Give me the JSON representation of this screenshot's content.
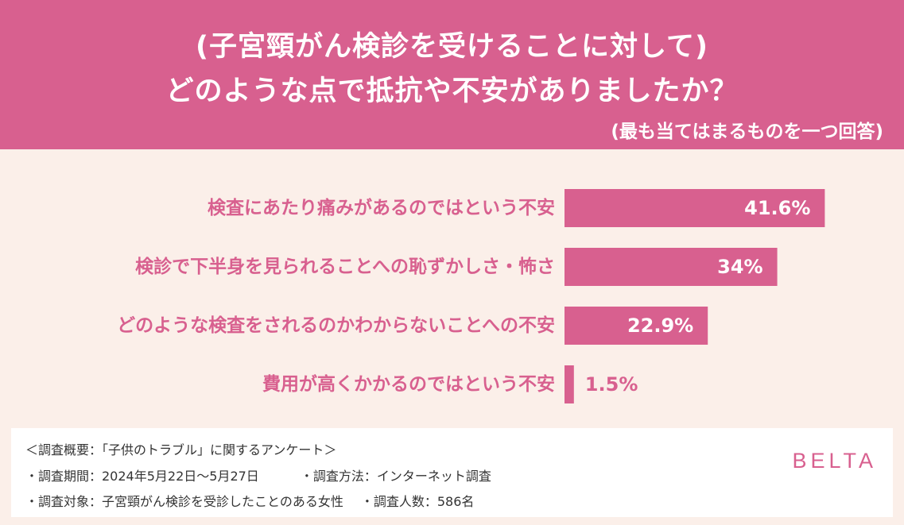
{
  "header": {
    "title_line1": "(子宮頸がん検診を受けることに対して)",
    "title_line2": "どのような点で抵抗や不安がありましたか？",
    "subtitle": "(最も当てはまるものを一つ回答)"
  },
  "chart_data": {
    "type": "bar",
    "orientation": "horizontal",
    "categories": [
      "検査にあたり痛みがあるのではという不安",
      "検診で下半身を見られることへの恥ずかしさ・怖さ",
      "どのような検査をされるのかわからないことへの不安",
      "費用が高くかかるのではという不安"
    ],
    "values": [
      41.6,
      34,
      22.9,
      1.5
    ],
    "value_labels": [
      "41.6%",
      "34%",
      "22.9%",
      "1.5%"
    ],
    "xlim": [
      0,
      100
    ],
    "bar_color": "#d8608f",
    "label_color": "#d8608f",
    "grid": false
  },
  "footer": {
    "line1": "＜調査概要：「子供のトラブル」に関するアンケート＞",
    "line2_a": "・調査期間：2024年5月22日〜5月27日",
    "line2_b": "・調査方法：インターネット調査",
    "line3_a": "・調査対象：子宮頸がん検診を受診したことのある女性",
    "line3_b": "・調査人数：586名",
    "logo": "BELTA"
  }
}
